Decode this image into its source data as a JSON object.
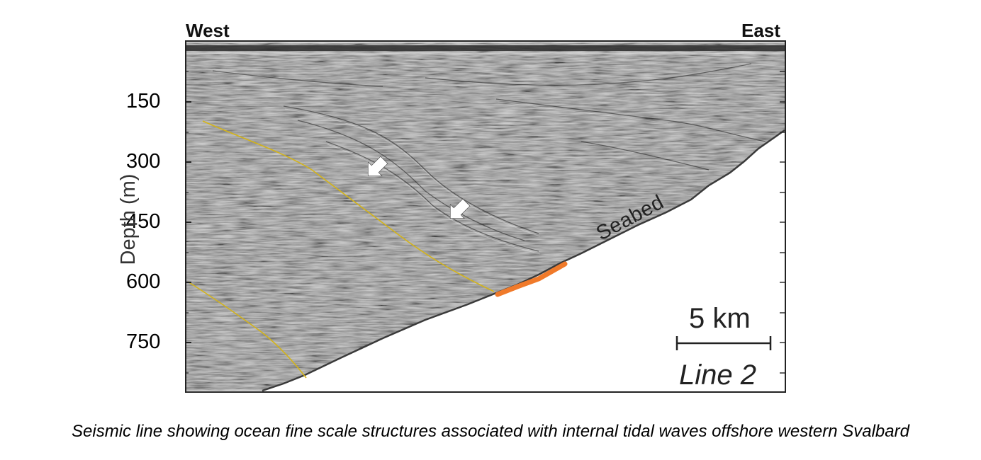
{
  "header": {
    "west_label": "West",
    "east_label": "East"
  },
  "axis": {
    "ylabel": "Depth (m)",
    "ticks": [
      "150",
      "300",
      "450",
      "600",
      "750"
    ]
  },
  "annotations": {
    "seabed_label": "Seabed",
    "scale_label": "5 km",
    "line_name": "Line 2"
  },
  "caption": "Seismic line showing ocean fine scale structures associated with internal tidal waves offshore western Svalbard",
  "colors": {
    "seismic_gray": "#8f8f8f",
    "fault_line": "#d4b418",
    "highlight": "#f07a2a",
    "arrow": "#ffffff"
  },
  "icons": [
    "arrow-icon",
    "arrow-icon"
  ]
}
